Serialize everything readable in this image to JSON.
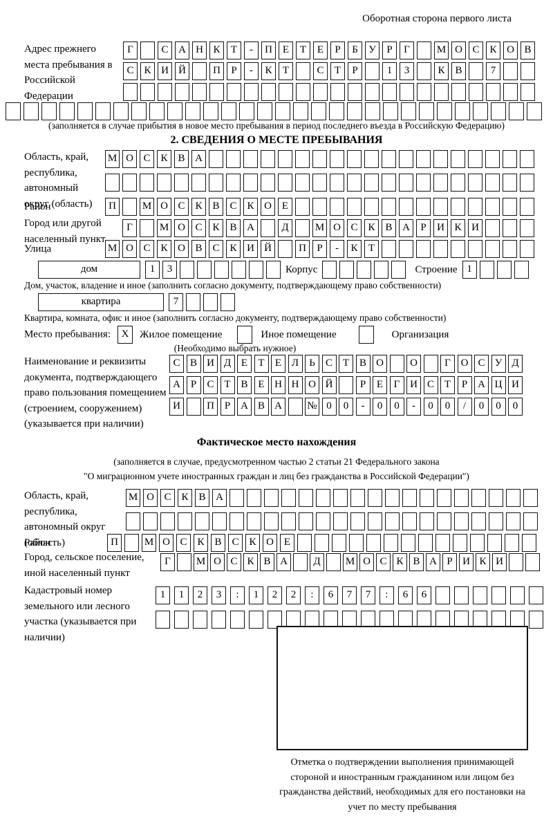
{
  "page": {
    "header_note": "Оборотная сторона первого листа"
  },
  "prev_address": {
    "label": "Адрес прежнего места пребывания в Российской Федерации",
    "rows": [
      [
        "Г",
        "",
        "С",
        "А",
        "Н",
        "К",
        "Т",
        "-",
        "П",
        "Е",
        "Т",
        "Е",
        "Р",
        "Б",
        "У",
        "Р",
        "Г",
        "",
        "М",
        "О",
        "С",
        "К",
        "О",
        "В"
      ],
      [
        "С",
        "К",
        "И",
        "Й",
        "",
        "П",
        "Р",
        "-",
        "К",
        "Т",
        "",
        "С",
        "Т",
        "Р",
        "",
        "1",
        "3",
        "",
        "К",
        "В",
        "",
        "7",
        "",
        ""
      ],
      [
        "",
        "",
        "",
        "",
        "",
        "",
        "",
        "",
        "",
        "",
        "",
        "",
        "",
        "",
        "",
        "",
        "",
        "",
        "",
        "",
        "",
        "",
        "",
        ""
      ]
    ],
    "full_row": [
      "",
      "",
      "",
      "",
      "",
      "",
      "",
      "",
      "",
      "",
      "",
      "",
      "",
      "",
      "",
      "",
      "",
      "",
      "",
      "",
      "",
      "",
      "",
      "",
      "",
      "",
      "",
      "",
      "",
      ""
    ],
    "caption": "(заполняется в случае прибытия в новое место пребывания в период последнего въезда в Российскую Федерацию)"
  },
  "section2": {
    "title": "2. СВЕДЕНИЯ О МЕСТЕ ПРЕБЫВАНИЯ",
    "region": {
      "label": "Область, край, республика, автономный округ (область)",
      "rows": [
        [
          "М",
          "О",
          "С",
          "К",
          "В",
          "А",
          "",
          "",
          "",
          "",
          "",
          "",
          "",
          "",
          "",
          "",
          "",
          "",
          "",
          "",
          "",
          "",
          "",
          "",
          ""
        ],
        [
          "",
          "",
          "",
          "",
          "",
          "",
          "",
          "",
          "",
          "",
          "",
          "",
          "",
          "",
          "",
          "",
          "",
          "",
          "",
          "",
          "",
          "",
          "",
          "",
          ""
        ]
      ]
    },
    "district": {
      "label": "Район",
      "row": [
        "П",
        "",
        "М",
        "О",
        "С",
        "К",
        "В",
        "С",
        "К",
        "О",
        "Е",
        "",
        "",
        "",
        "",
        "",
        "",
        "",
        "",
        "",
        "",
        "",
        "",
        "",
        ""
      ]
    },
    "city": {
      "label": "Город или другой населенный пункт",
      "row": [
        "Г",
        "",
        "М",
        "О",
        "С",
        "К",
        "В",
        "А",
        "",
        "Д",
        "",
        "М",
        "О",
        "С",
        "К",
        "В",
        "А",
        "Р",
        "И",
        "К",
        "И",
        "",
        "",
        ""
      ]
    },
    "street": {
      "label": "Улица",
      "row": [
        "М",
        "О",
        "С",
        "К",
        "О",
        "В",
        "С",
        "К",
        "И",
        "Й",
        "",
        "П",
        "Р",
        "-",
        "К",
        "Т",
        "",
        "",
        "",
        "",
        "",
        "",
        "",
        "",
        ""
      ]
    },
    "house": {
      "label": "дом",
      "cells": [
        "1",
        "3",
        "",
        "",
        "",
        "",
        "",
        ""
      ],
      "korpus_label": "Корпус",
      "korpus_cells": [
        "",
        "",
        "",
        "",
        ""
      ],
      "stroenie_label": "Строение",
      "stroenie_cells": [
        "1",
        "",
        "",
        ""
      ]
    },
    "house_caption": "Дом, участок, владение и иное (заполнить согласно документу, подтверждающему право собственности)",
    "apartment": {
      "label": "квартира",
      "cells": [
        "7",
        "",
        "",
        ""
      ]
    },
    "apartment_caption": "Квартира, комната, офис и иное (заполнить согласно документу, подтверждающему право собственности)",
    "stay_type": {
      "label": "Место пребывания:",
      "options": [
        {
          "label": "Жилое помещение",
          "mark": "X"
        },
        {
          "label": "Иное помещение",
          "mark": ""
        },
        {
          "label": "Организация",
          "mark": ""
        }
      ],
      "hint": "(Необходимо выбрать нужное)"
    },
    "document": {
      "label": "Наименование и реквизиты документа, подтверждающего право пользования помещением (строением, сооружением) (указывается при наличии)",
      "rows": [
        [
          "С",
          "В",
          "И",
          "Д",
          "Е",
          "Т",
          "Е",
          "Л",
          "Ь",
          "С",
          "Т",
          "В",
          "О",
          "",
          "О",
          "",
          "Г",
          "О",
          "С",
          "У",
          "Д"
        ],
        [
          "А",
          "Р",
          "С",
          "Т",
          "В",
          "Е",
          "Н",
          "Н",
          "О",
          "Й",
          "",
          "Р",
          "Е",
          "Г",
          "И",
          "С",
          "Т",
          "Р",
          "А",
          "Ц",
          "И"
        ],
        [
          "И",
          "",
          "П",
          "Р",
          "А",
          "В",
          "А",
          "",
          "№",
          "0",
          "0",
          "-",
          "0",
          "0",
          "-",
          "0",
          "0",
          "/",
          "0",
          "0",
          "0"
        ]
      ]
    }
  },
  "actual_location": {
    "title": "Фактическое место нахождения",
    "note_line1": "(заполняется в случае, предусмотренном частью 2 статьи 21 Федерального закона",
    "note_line2": "\"О миграционном учете иностранных граждан и лиц без гражданства в Российской Федерации\")",
    "region": {
      "label": "Область, край, республика, автономный округ (область)",
      "rows": [
        [
          "М",
          "О",
          "С",
          "К",
          "В",
          "А",
          "",
          "",
          "",
          "",
          "",
          "",
          "",
          "",
          "",
          "",
          "",
          "",
          "",
          "",
          "",
          "",
          "",
          ""
        ],
        [
          "",
          "",
          "",
          "",
          "",
          "",
          "",
          "",
          "",
          "",
          "",
          "",
          "",
          "",
          "",
          "",
          "",
          "",
          "",
          "",
          "",
          "",
          "",
          ""
        ]
      ]
    },
    "district": {
      "label": "Район",
      "row": [
        "П",
        "",
        "М",
        "О",
        "С",
        "К",
        "В",
        "С",
        "К",
        "О",
        "Е",
        "",
        "",
        "",
        "",
        "",
        "",
        "",
        "",
        "",
        "",
        "",
        "",
        "",
        ""
      ]
    },
    "city": {
      "label": "Город, сельское поселение, иной населенный пункт",
      "row": [
        "Г",
        "",
        "М",
        "О",
        "С",
        "К",
        "В",
        "А",
        "",
        "Д",
        "",
        "М",
        "О",
        "С",
        "К",
        "В",
        "А",
        "Р",
        "И",
        "К",
        "И",
        "",
        ""
      ]
    },
    "cadastre": {
      "label": "Кадастровый номер земельного или лесного участка (указывается при наличии)",
      "rows": [
        [
          "1",
          "1",
          "2",
          "3",
          ":",
          "1",
          "2",
          "2",
          ":",
          "6",
          "7",
          "7",
          ":",
          "6",
          "6",
          "",
          "",
          "",
          "",
          "",
          ""
        ],
        [
          "",
          "",
          "",
          "",
          "",
          "",
          "",
          "",
          "",
          "",
          "",
          "",
          "",
          "",
          "",
          "",
          "",
          "",
          "",
          "",
          ""
        ]
      ]
    },
    "stamp_caption": "Отметка о подтверждении выполнения принимающей стороной и иностранным гражданином или лицом без гражданства действий, необходимых для его постановки на учет по месту пребывания"
  }
}
